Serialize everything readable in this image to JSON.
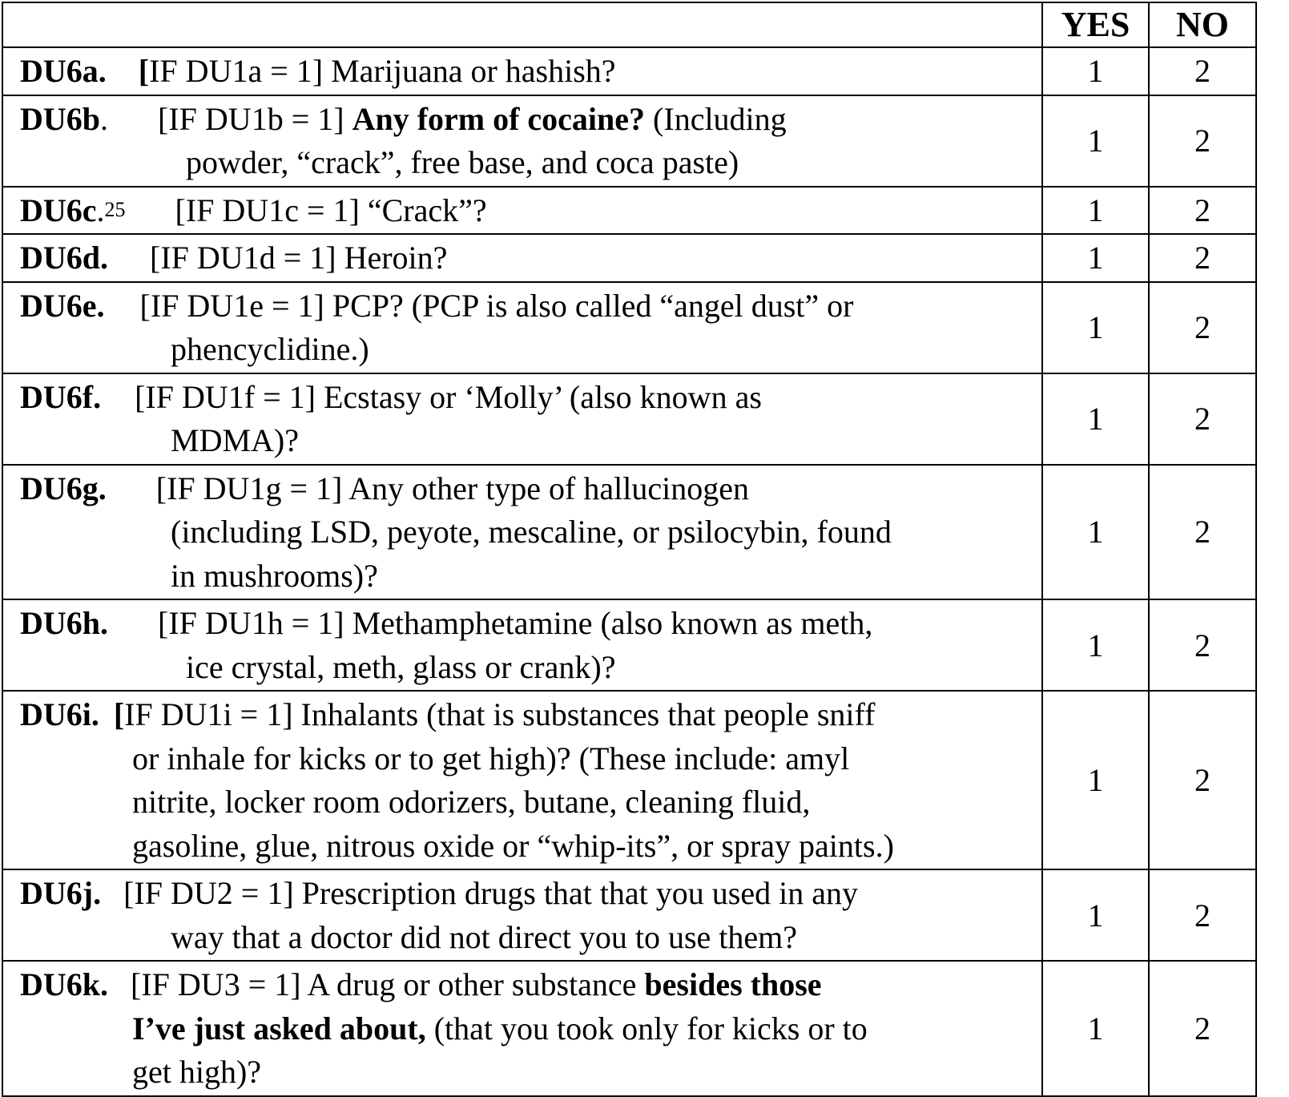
{
  "header": {
    "blank": "",
    "yes": "YES",
    "no": "NO"
  },
  "rows": [
    {
      "id": "DU6a.",
      "lines": [
        "[IF DU1a = 1] Marijuana or hashish?"
      ],
      "yes": "1",
      "no": "2"
    },
    {
      "id": "DU6b",
      "lines": [
        "[IF DU1b = 1] ",
        "Any form of cocaine?",
        " (Including",
        "powder, “crack”, free base, and coca paste)"
      ],
      "yes": "1",
      "no": "2"
    },
    {
      "id": "DU6c",
      "sup": "25",
      "lines": [
        "[IF DU1c = 1] “Crack”?"
      ],
      "yes": "1",
      "no": "2"
    },
    {
      "id": "DU6d.",
      "lines": [
        "[IF DU1d = 1] Heroin?"
      ],
      "yes": "1",
      "no": "2"
    },
    {
      "id": "DU6e.",
      "lines": [
        "[IF DU1e = 1]  PCP?  (PCP is also called “angel dust” or",
        "phencyclidine.)"
      ],
      "yes": "1",
      "no": "2"
    },
    {
      "id": "DU6f.",
      "lines": [
        "[IF DU1f = 1]  Ecstasy or ‘Molly’ (also known as",
        "MDMA)?"
      ],
      "yes": "1",
      "no": "2"
    },
    {
      "id": "DU6g.",
      "lines": [
        "[IF DU1g = 1] Any other type of hallucinogen",
        "(including LSD, peyote, mescaline, or psilocybin, found",
        "in mushrooms)?"
      ],
      "yes": "1",
      "no": "2"
    },
    {
      "id": "DU6h.",
      "lines": [
        "[IF DU1h = 1]  Methamphetamine (also known as meth,",
        "ice crystal, meth, glass or crank)?"
      ],
      "yes": "1",
      "no": "2"
    },
    {
      "id": "DU6i.",
      "lines": [
        "IF DU1i = 1]  Inhalants (that is substances that people sniff",
        "or inhale for kicks or to get high)?  (These include:  amyl",
        "nitrite, locker room odorizers, butane, cleaning fluid,",
        "gasoline, glue, nitrous oxide or “whip-its”, or spray paints.)"
      ],
      "yes": "1",
      "no": "2"
    },
    {
      "id": "DU6j.",
      "lines": [
        "[IF DU2 = 1] Prescription drugs that that you used in any",
        "way that a doctor did not direct you to use them?"
      ],
      "yes": "1",
      "no": "2"
    },
    {
      "id": "DU6k.",
      "lines": [
        "[IF DU3 = 1]  A drug or other substance ",
        "besides those",
        "I’ve just asked about,",
        " (that you took only for kicks or to",
        "get high)?"
      ],
      "yes": "1",
      "no": "2"
    }
  ]
}
